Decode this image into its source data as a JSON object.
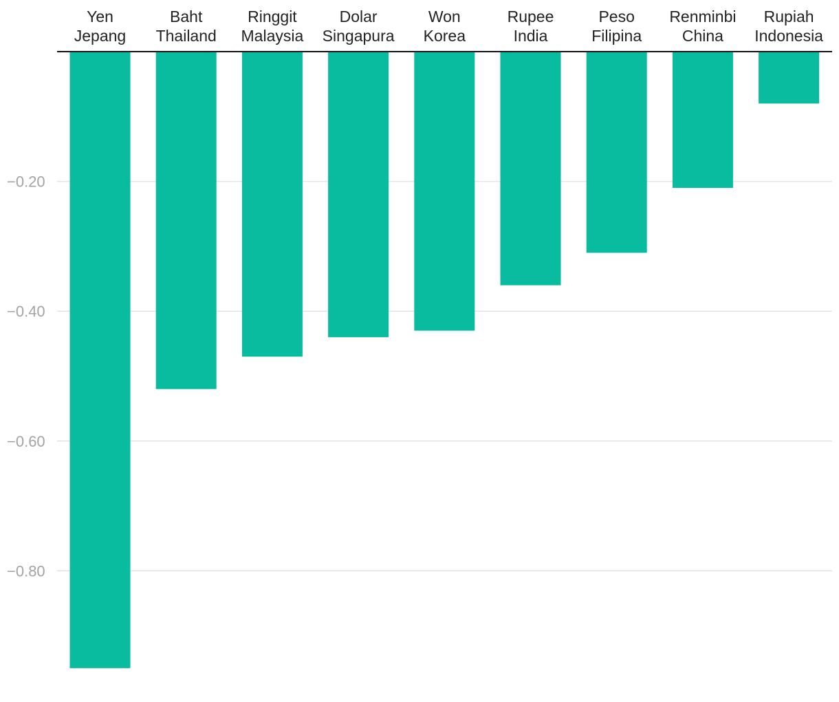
{
  "chart_data": {
    "type": "bar",
    "categories": [
      "Yen Jepang",
      "Baht Thailand",
      "Ringgit Malaysia",
      "Dolar Singapura",
      "Won Korea",
      "Rupee India",
      "Peso Filipina",
      "Renminbi China",
      "Rupiah Indonesia"
    ],
    "category_label_lines": [
      [
        "Yen",
        "Jepang"
      ],
      [
        "Baht",
        "Thailand"
      ],
      [
        "Ringgit",
        "Malaysia"
      ],
      [
        "Dolar",
        "Singapura"
      ],
      [
        "Won",
        "Korea"
      ],
      [
        "Rupee",
        "India"
      ],
      [
        "Peso",
        "Filipina"
      ],
      [
        "Renminbi",
        "China"
      ],
      [
        "Rupiah",
        "Indonesia"
      ]
    ],
    "values": [
      -0.95,
      -0.52,
      -0.47,
      -0.44,
      -0.43,
      -0.36,
      -0.31,
      -0.21,
      -0.08
    ],
    "title": "",
    "xlabel": "",
    "ylabel": "",
    "ylim": [
      -0.95,
      0
    ],
    "yticks": [
      -0.2,
      -0.4,
      -0.6,
      -0.8
    ],
    "ytick_labels": [
      "−0.20",
      "−0.40",
      "−0.60",
      "−0.80"
    ],
    "grid": true,
    "legend": "none",
    "bar_color": "#0abc9f"
  }
}
